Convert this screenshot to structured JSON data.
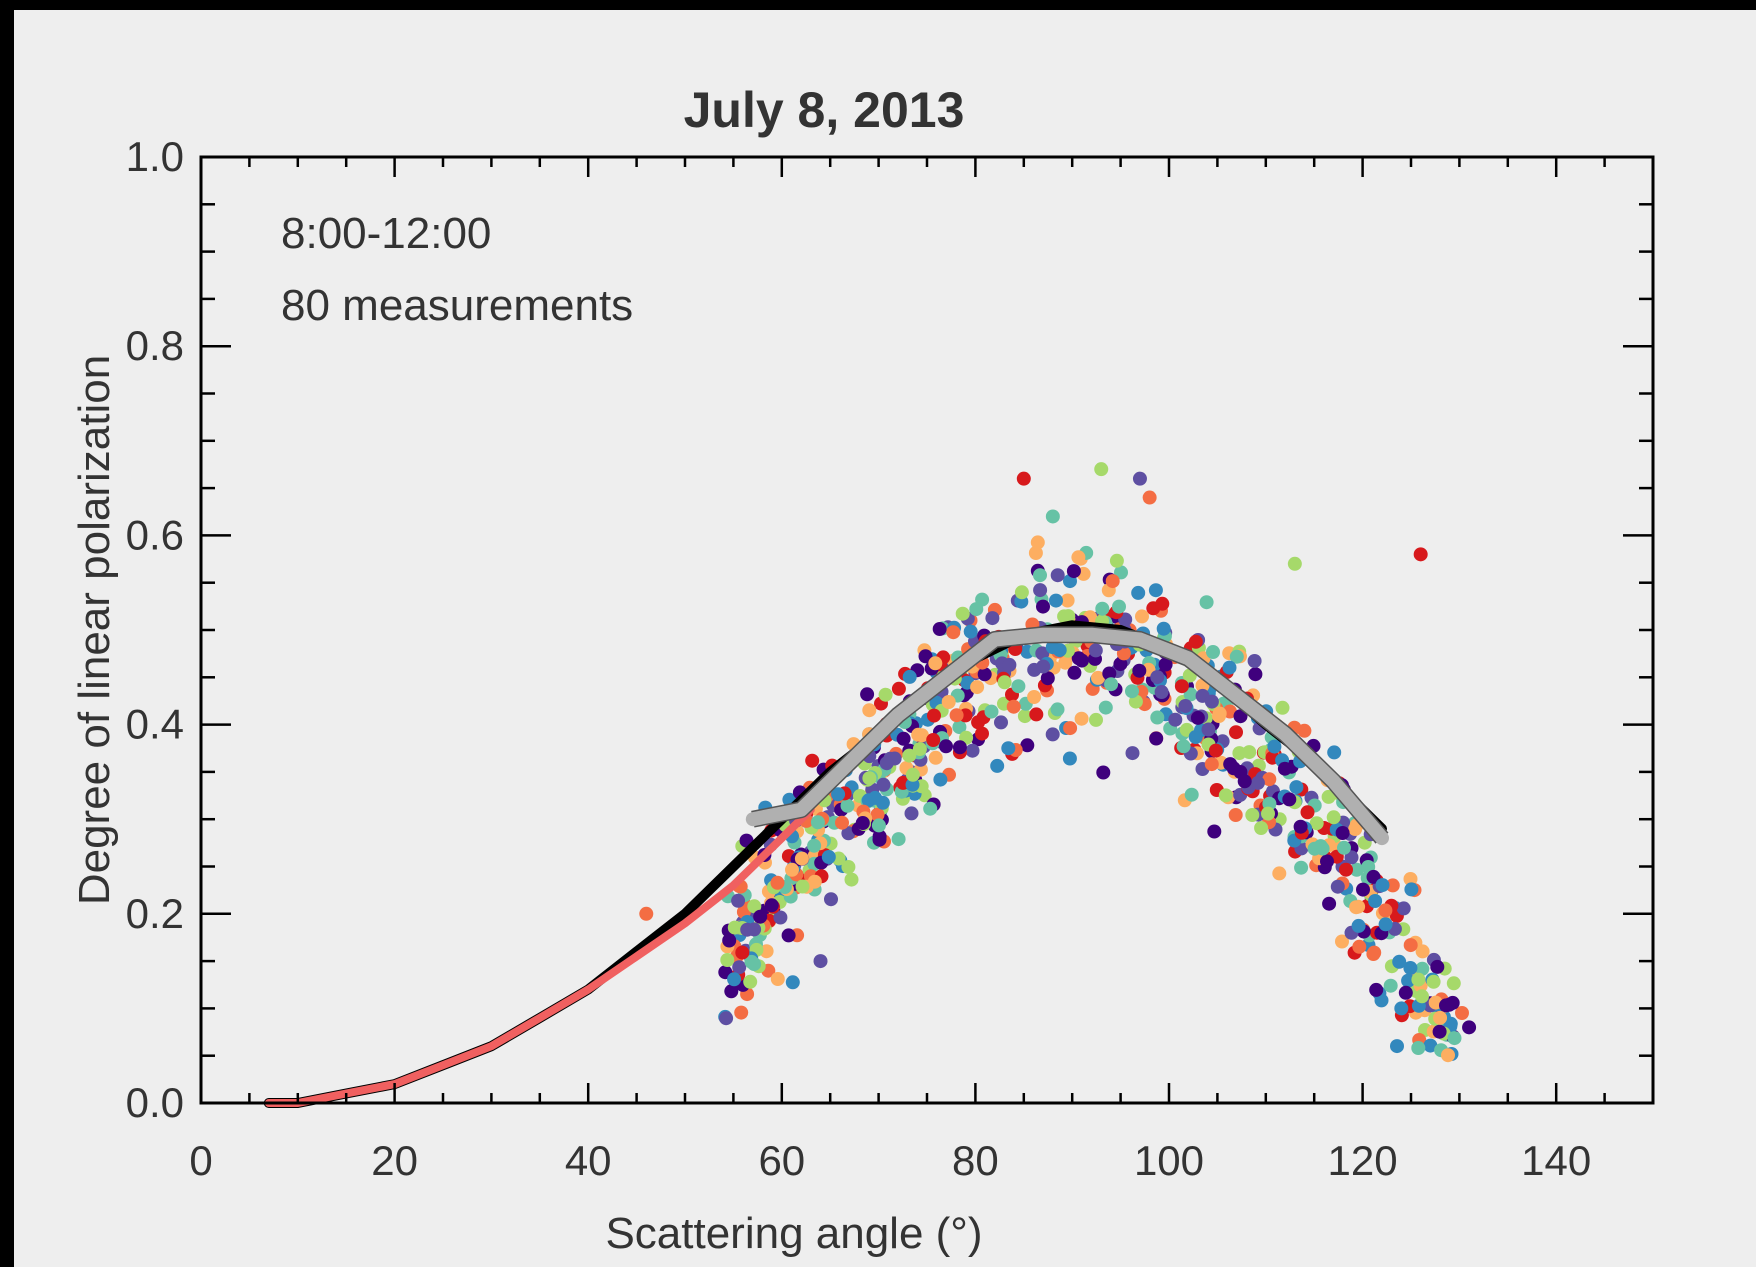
{
  "chart_data": {
    "type": "scatter",
    "title": "July 8, 2013",
    "xlabel": "Scattering angle (°)",
    "ylabel": "Degree of linear polarization",
    "xlim": [
      0,
      150
    ],
    "ylim": [
      0,
      1.0
    ],
    "x_ticks": [
      0,
      20,
      40,
      60,
      80,
      100,
      120,
      140
    ],
    "x_tick_labels": [
      "0",
      "20",
      "40",
      "60",
      "80",
      "100",
      "120",
      "140"
    ],
    "y_ticks": [
      0,
      0.2,
      0.4,
      0.6,
      0.8,
      1.0
    ],
    "y_tick_labels": [
      "0.0",
      "0.2",
      "0.4",
      "0.6",
      "0.8",
      "1.0"
    ],
    "annotations": [
      "8:00-12:00",
      "80 measurements"
    ],
    "grid": false,
    "palette": [
      "#d7191c",
      "#f46d43",
      "#fdae61",
      "#a6d96a",
      "#66c2a5",
      "#3288bd",
      "#5e4fa2",
      "#3f007d"
    ],
    "scatter_model": {
      "peak_x": 90,
      "peak_y": 0.49,
      "x_range": [
        54,
        131
      ],
      "n_points": 900,
      "note": "dense cloud of individual measurements following a bell-shaped curve"
    },
    "outliers": [
      [
        85,
        0.66
      ],
      [
        93,
        0.67
      ],
      [
        97,
        0.66
      ],
      [
        98,
        0.64
      ],
      [
        88,
        0.62
      ],
      [
        131,
        0.08
      ],
      [
        128,
        0.09
      ],
      [
        124,
        0.1
      ],
      [
        126,
        0.58
      ],
      [
        113,
        0.57
      ],
      [
        64,
        0.15
      ],
      [
        46,
        0.2
      ]
    ],
    "series": [
      {
        "name": "",
        "color": "#000000",
        "x": [
          7,
          10,
          15,
          20,
          25,
          30,
          35,
          40,
          45,
          50,
          55,
          60,
          65,
          70,
          75,
          80,
          85,
          90,
          95,
          100,
          105,
          110,
          115,
          120,
          122
        ],
        "y": [
          0.0,
          0.0,
          0.01,
          0.02,
          0.04,
          0.06,
          0.09,
          0.12,
          0.16,
          0.2,
          0.25,
          0.3,
          0.35,
          0.39,
          0.43,
          0.47,
          0.495,
          0.505,
          0.5,
          0.48,
          0.445,
          0.4,
          0.36,
          0.31,
          0.29
        ]
      },
      {
        "name": "",
        "color": "#f06060",
        "x": [
          7,
          10,
          15,
          20,
          25,
          30,
          35,
          40,
          45,
          50,
          55,
          60,
          63
        ],
        "y": [
          0.0,
          0.0,
          0.01,
          0.02,
          0.04,
          0.06,
          0.09,
          0.12,
          0.155,
          0.19,
          0.23,
          0.28,
          0.31
        ]
      },
      {
        "name": "",
        "color": "#b0b0b0",
        "x": [
          57,
          62,
          67,
          72,
          77,
          82,
          87,
          92,
          97,
          102,
          107,
          112,
          117,
          122
        ],
        "y": [
          0.3,
          0.31,
          0.36,
          0.41,
          0.45,
          0.49,
          0.495,
          0.495,
          0.49,
          0.47,
          0.43,
          0.39,
          0.34,
          0.28
        ]
      }
    ]
  }
}
